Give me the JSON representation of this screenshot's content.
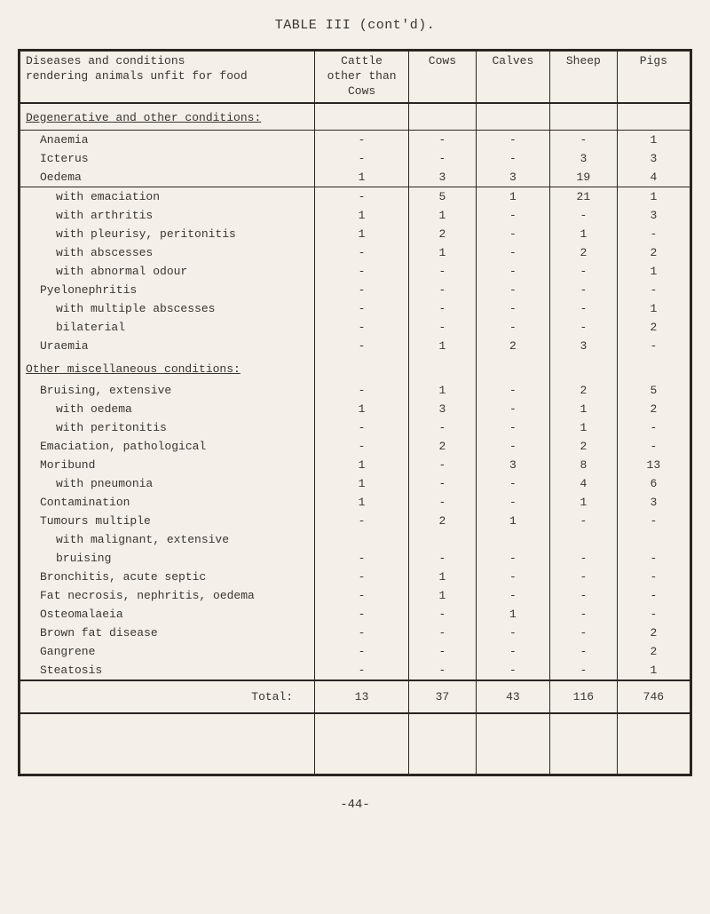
{
  "title": "TABLE III (cont'd).",
  "header": {
    "desc_line1": "Diseases and conditions",
    "desc_line2": "rendering animals unfit for food",
    "cattle_line1": "Cattle",
    "cattle_line2": "other than",
    "cattle_line3": "Cows",
    "cows": "Cows",
    "calves": "Calves",
    "sheep": "Sheep",
    "pigs": "Pigs"
  },
  "section1": "Degenerative and other conditions:",
  "section2": "Other miscellaneous conditions:",
  "rows1": [
    {
      "label": "Anaemia",
      "indent": 1,
      "c": "-",
      "co": "-",
      "ca": "-",
      "s": "-",
      "p": "1"
    },
    {
      "label": "Icterus",
      "indent": 1,
      "c": "-",
      "co": "-",
      "ca": "-",
      "s": "3",
      "p": "3"
    },
    {
      "label": "Oedema",
      "indent": 1,
      "c": "1",
      "co": "3",
      "ca": "3",
      "s": "19",
      "p": "4"
    },
    {
      "label": "with emaciation",
      "indent": 2,
      "c": "-",
      "co": "5",
      "ca": "1",
      "s": "21",
      "p": "1"
    },
    {
      "label": "with arthritis",
      "indent": 2,
      "c": "1",
      "co": "1",
      "ca": "-",
      "s": "-",
      "p": "3"
    },
    {
      "label": "with pleurisy, peritonitis",
      "indent": 2,
      "c": "1",
      "co": "2",
      "ca": "-",
      "s": "1",
      "p": "-"
    },
    {
      "label": "with abscesses",
      "indent": 2,
      "c": "-",
      "co": "1",
      "ca": "-",
      "s": "2",
      "p": "2"
    },
    {
      "label": "with abnormal odour",
      "indent": 2,
      "c": "-",
      "co": "-",
      "ca": "-",
      "s": "-",
      "p": "1"
    },
    {
      "label": "Pyelonephritis",
      "indent": 1,
      "c": "-",
      "co": "-",
      "ca": "-",
      "s": "-",
      "p": "-"
    },
    {
      "label": "with multiple abscesses",
      "indent": 2,
      "c": "-",
      "co": "-",
      "ca": "-",
      "s": "-",
      "p": "1"
    },
    {
      "label": "bilaterial",
      "indent": 2,
      "c": "-",
      "co": "-",
      "ca": "-",
      "s": "-",
      "p": "2"
    },
    {
      "label": "Uraemia",
      "indent": 1,
      "c": "-",
      "co": "1",
      "ca": "2",
      "s": "3",
      "p": "-"
    }
  ],
  "rows2": [
    {
      "label": "Bruising, extensive",
      "indent": 1,
      "c": "-",
      "co": "1",
      "ca": "-",
      "s": "2",
      "p": "5"
    },
    {
      "label": "with oedema",
      "indent": 2,
      "c": "1",
      "co": "3",
      "ca": "-",
      "s": "1",
      "p": "2"
    },
    {
      "label": "with peritonitis",
      "indent": 2,
      "c": "-",
      "co": "-",
      "ca": "-",
      "s": "1",
      "p": "-"
    },
    {
      "label": "Emaciation, pathological",
      "indent": 1,
      "c": "-",
      "co": "2",
      "ca": "-",
      "s": "2",
      "p": "-"
    },
    {
      "label": "Moribund",
      "indent": 1,
      "c": "1",
      "co": "-",
      "ca": "3",
      "s": "8",
      "p": "13"
    },
    {
      "label": "with pneumonia",
      "indent": 2,
      "c": "1",
      "co": "-",
      "ca": "-",
      "s": "4",
      "p": "6"
    },
    {
      "label": "Contamination",
      "indent": 1,
      "c": "1",
      "co": "-",
      "ca": "-",
      "s": "1",
      "p": "3"
    },
    {
      "label": "Tumours multiple",
      "indent": 1,
      "c": "-",
      "co": "2",
      "ca": "1",
      "s": "-",
      "p": "-"
    },
    {
      "label": "with malignant, extensive",
      "indent": 2,
      "c": "",
      "co": "",
      "ca": "",
      "s": "",
      "p": ""
    },
    {
      "label": "bruising",
      "indent": 2,
      "c": "-",
      "co": "-",
      "ca": "-",
      "s": "-",
      "p": "-"
    },
    {
      "label": "Bronchitis, acute septic",
      "indent": 1,
      "c": "-",
      "co": "1",
      "ca": "-",
      "s": "-",
      "p": "-"
    },
    {
      "label": "Fat necrosis, nephritis, oedema",
      "indent": 1,
      "c": "-",
      "co": "1",
      "ca": "-",
      "s": "-",
      "p": "-"
    },
    {
      "label": "Osteomalaeia",
      "indent": 1,
      "c": "-",
      "co": "-",
      "ca": "1",
      "s": "-",
      "p": "-"
    },
    {
      "label": "Brown fat disease",
      "indent": 1,
      "c": "-",
      "co": "-",
      "ca": "-",
      "s": "-",
      "p": "2"
    },
    {
      "label": "Gangrene",
      "indent": 1,
      "c": "-",
      "co": "-",
      "ca": "-",
      "s": "-",
      "p": "2"
    },
    {
      "label": "Steatosis",
      "indent": 1,
      "c": "-",
      "co": "-",
      "ca": "-",
      "s": "-",
      "p": "1"
    }
  ],
  "total": {
    "label": "Total:",
    "c": "13",
    "co": "37",
    "ca": "43",
    "s": "116",
    "p": "746"
  },
  "page_num": "-44-"
}
